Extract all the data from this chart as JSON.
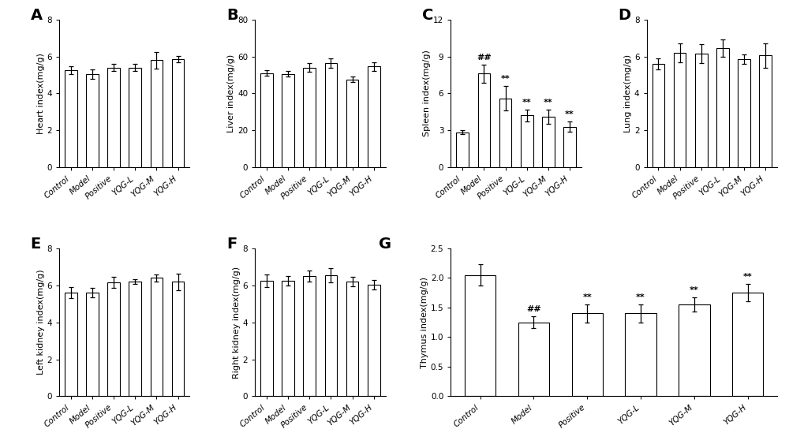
{
  "categories": [
    "Control",
    "Model",
    "Positive",
    "YQG-L",
    "YQG-M",
    "YQG-H"
  ],
  "panels": [
    {
      "label": "A",
      "ylabel": "Heart index(mg/g)",
      "ylim": [
        0,
        8
      ],
      "yticks": [
        0,
        2,
        4,
        6,
        8
      ],
      "values": [
        5.25,
        5.05,
        5.4,
        5.4,
        5.8,
        5.85
      ],
      "errors": [
        0.2,
        0.25,
        0.18,
        0.18,
        0.45,
        0.18
      ],
      "annotations": [
        "",
        "",
        "",
        "",
        "",
        ""
      ]
    },
    {
      "label": "B",
      "ylabel": "Liver index(mg/g)",
      "ylim": [
        0,
        80
      ],
      "yticks": [
        0,
        20,
        40,
        60,
        80
      ],
      "values": [
        51,
        50.5,
        54,
        56.5,
        47.5,
        54.5
      ],
      "errors": [
        1.5,
        1.5,
        2.5,
        2.5,
        1.5,
        2.5
      ],
      "annotations": [
        "",
        "",
        "",
        "",
        "",
        ""
      ]
    },
    {
      "label": "C",
      "ylabel": "Spleen index(mg/g)",
      "ylim": [
        0,
        12
      ],
      "yticks": [
        0,
        3,
        6,
        9,
        12
      ],
      "values": [
        2.85,
        7.6,
        5.6,
        4.2,
        4.1,
        3.3
      ],
      "errors": [
        0.15,
        0.75,
        1.0,
        0.5,
        0.6,
        0.4
      ],
      "annotations": [
        "",
        "##",
        "**",
        "**",
        "**",
        "**"
      ]
    },
    {
      "label": "D",
      "ylabel": "Lung index(mg/g)",
      "ylim": [
        0,
        8
      ],
      "yticks": [
        0,
        2,
        4,
        6,
        8
      ],
      "values": [
        5.6,
        6.2,
        6.15,
        6.45,
        5.85,
        6.05
      ],
      "errors": [
        0.3,
        0.5,
        0.5,
        0.45,
        0.25,
        0.65
      ],
      "annotations": [
        "",
        "",
        "",
        "",
        "",
        ""
      ]
    },
    {
      "label": "E",
      "ylabel": "Left kidney index(mg/g)",
      "ylim": [
        0,
        8
      ],
      "yticks": [
        0,
        2,
        4,
        6,
        8
      ],
      "values": [
        5.6,
        5.6,
        6.15,
        6.2,
        6.4,
        6.2
      ],
      "errors": [
        0.3,
        0.25,
        0.3,
        0.12,
        0.2,
        0.45
      ],
      "annotations": [
        "",
        "",
        "",
        "",
        "",
        ""
      ]
    },
    {
      "label": "F",
      "ylabel": "Right kidney index(mg/g)",
      "ylim": [
        0,
        8
      ],
      "yticks": [
        0,
        2,
        4,
        6,
        8
      ],
      "values": [
        6.25,
        6.25,
        6.5,
        6.55,
        6.2,
        6.05
      ],
      "errors": [
        0.35,
        0.25,
        0.3,
        0.4,
        0.25,
        0.25
      ],
      "annotations": [
        "",
        "",
        "",
        "",
        "",
        ""
      ]
    },
    {
      "label": "G",
      "ylabel": "Thymus index(mg/g)",
      "ylim": [
        0,
        2.5
      ],
      "yticks": [
        0.0,
        0.5,
        1.0,
        1.5,
        2.0,
        2.5
      ],
      "values": [
        2.05,
        1.25,
        1.4,
        1.4,
        1.55,
        1.75
      ],
      "errors": [
        0.18,
        0.1,
        0.15,
        0.15,
        0.12,
        0.15
      ],
      "annotations": [
        "",
        "##",
        "**",
        "**",
        "**",
        "**"
      ]
    }
  ],
  "bar_color": "#ffffff",
  "bar_edge_color": "#000000",
  "error_color": "#000000",
  "annotation_color": "#000000",
  "background_color": "#ffffff"
}
